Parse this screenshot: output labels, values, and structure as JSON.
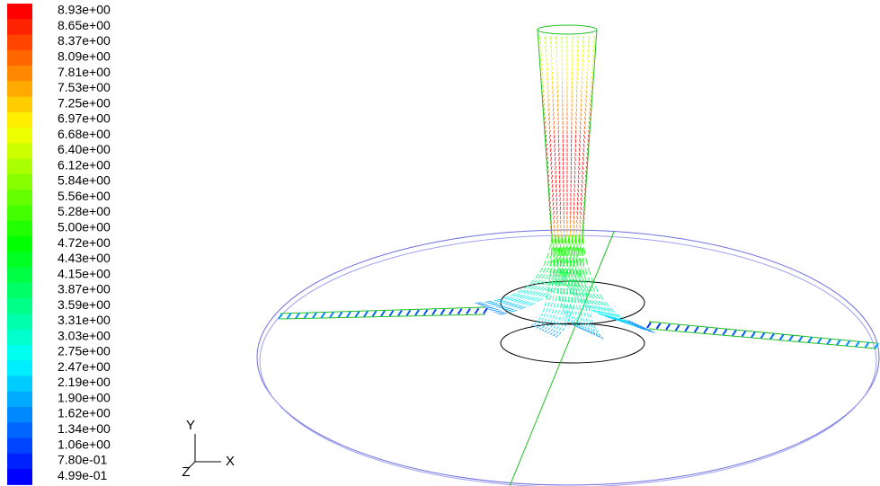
{
  "colorbar": {
    "labels": [
      "8.93e+00",
      "8.65e+00",
      "8.37e+00",
      "8.09e+00",
      "7.81e+00",
      "7.53e+00",
      "7.25e+00",
      "6.97e+00",
      "6.68e+00",
      "6.40e+00",
      "6.12e+00",
      "5.84e+00",
      "5.56e+00",
      "5.28e+00",
      "5.00e+00",
      "4.72e+00",
      "4.43e+00",
      "4.15e+00",
      "3.87e+00",
      "3.59e+00",
      "3.31e+00",
      "3.03e+00",
      "2.75e+00",
      "2.47e+00",
      "2.19e+00",
      "1.90e+00",
      "1.62e+00",
      "1.34e+00",
      "1.06e+00",
      "7.80e-01",
      "4.99e-01"
    ]
  },
  "triad": {
    "y": "Y",
    "x": "X",
    "z": "Z"
  }
}
